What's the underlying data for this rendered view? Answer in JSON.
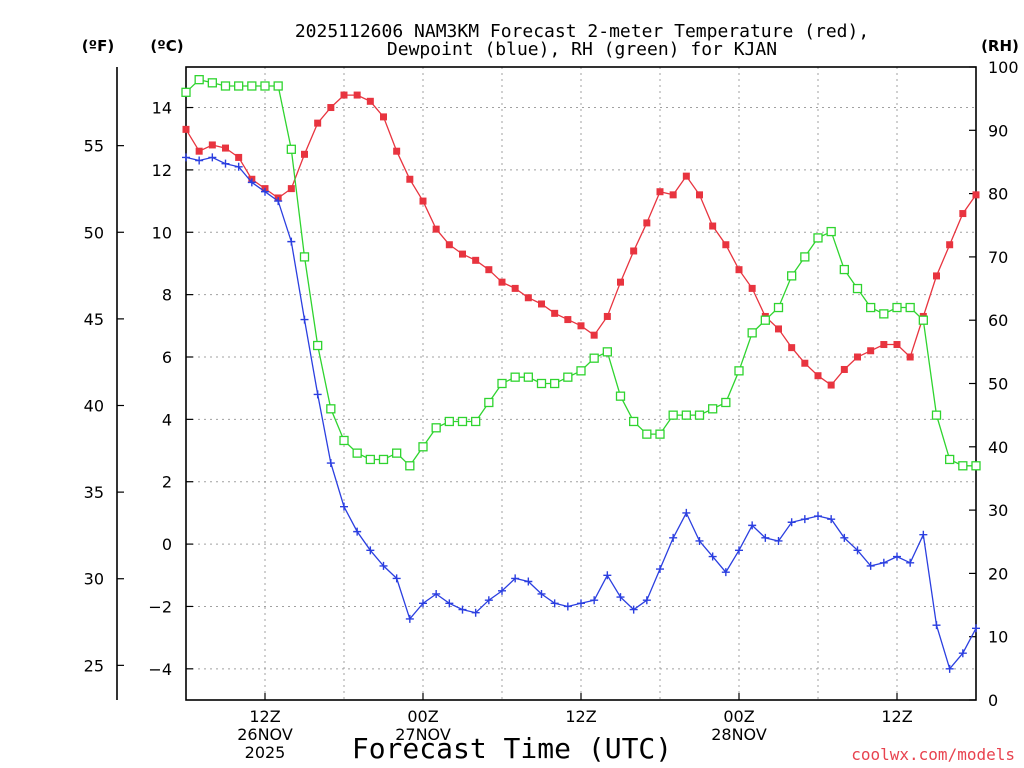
{
  "chart_data": {
    "type": "line",
    "title_line1": "2025112606 NAM3KM Forecast 2-meter Temperature (red),",
    "title_line2": "Dewpoint (blue), RH (green) for KJAN",
    "xlabel": "Forecast Time (UTC)",
    "credit": "coolwx.com/models",
    "unit_f": "(ºF)",
    "unit_c": "(ºC)",
    "unit_rh": "(RH)",
    "x_range_hours": [
      0,
      60
    ],
    "c_range": [
      -5,
      15.3
    ],
    "f_range": [
      23,
      59.54
    ],
    "rh_range": [
      0,
      100
    ],
    "c_ticks": [
      "−4",
      "−2",
      "0",
      "2",
      "4",
      "6",
      "8",
      "10",
      "12",
      "14"
    ],
    "c_tick_values": [
      -4,
      -2,
      0,
      2,
      4,
      6,
      8,
      10,
      12,
      14
    ],
    "f_ticks": [
      "25",
      "30",
      "35",
      "40",
      "45",
      "50",
      "55"
    ],
    "f_tick_values": [
      25,
      30,
      35,
      40,
      45,
      50,
      55
    ],
    "rh_ticks": [
      "0",
      "10",
      "20",
      "30",
      "40",
      "50",
      "60",
      "70",
      "80",
      "90",
      "100"
    ],
    "rh_tick_values": [
      0,
      10,
      20,
      30,
      40,
      50,
      60,
      70,
      80,
      90,
      100
    ],
    "x_ticks": [
      {
        "hour": 6,
        "lines": [
          "12Z",
          "26NOV",
          "2025"
        ]
      },
      {
        "hour": 18,
        "lines": [
          "00Z",
          "27NOV"
        ]
      },
      {
        "hour": 30,
        "lines": [
          "12Z"
        ]
      },
      {
        "hour": 42,
        "lines": [
          "00Z",
          "28NOV"
        ]
      },
      {
        "hour": 54,
        "lines": [
          "12Z"
        ]
      }
    ],
    "series": [
      {
        "name": "Temperature",
        "color": "#e8343f",
        "marker": "filled-square",
        "values": [
          13.3,
          12.6,
          12.8,
          12.7,
          12.4,
          11.7,
          11.4,
          11.1,
          11.4,
          12.5,
          13.5,
          14.0,
          14.4,
          14.4,
          14.2,
          13.7,
          12.6,
          11.7,
          11.0,
          10.1,
          9.6,
          9.3,
          9.1,
          8.8,
          8.4,
          8.2,
          7.9,
          7.7,
          7.4,
          7.2,
          7.0,
          6.7,
          7.3,
          8.4,
          9.4,
          10.3,
          11.3,
          11.2,
          11.8,
          11.2,
          10.2,
          9.6,
          8.8,
          8.2,
          7.3,
          6.9,
          6.3,
          5.8,
          5.4,
          5.1,
          5.6,
          6.0,
          6.2,
          6.4,
          6.4,
          6.0,
          7.3,
          8.6,
          9.6,
          10.6,
          11.2
        ]
      },
      {
        "name": "Dewpoint",
        "color": "#2b3fe0",
        "marker": "plus",
        "values": [
          12.4,
          12.3,
          12.4,
          12.2,
          12.1,
          11.6,
          11.3,
          11.0,
          9.7,
          7.2,
          4.8,
          2.6,
          1.2,
          0.4,
          -0.2,
          -0.7,
          -1.1,
          -2.4,
          -1.9,
          -1.6,
          -1.9,
          -2.1,
          -2.2,
          -1.8,
          -1.5,
          -1.1,
          -1.2,
          -1.6,
          -1.9,
          -2.0,
          -1.9,
          -1.8,
          -1.0,
          -1.7,
          -2.1,
          -1.8,
          -0.8,
          0.2,
          1.0,
          0.1,
          -0.4,
          -0.9,
          -0.2,
          0.6,
          0.2,
          0.1,
          0.7,
          0.8,
          0.9,
          0.8,
          0.2,
          -0.2,
          -0.7,
          -0.6,
          -0.4,
          -0.6,
          0.3,
          -2.6,
          -4.0,
          -3.5,
          -2.7
        ]
      },
      {
        "name": "RH",
        "color": "#2fd42f",
        "marker": "open-square",
        "values": [
          96,
          98,
          97.5,
          97,
          97,
          97,
          97,
          97,
          87,
          70,
          56,
          46,
          41,
          39,
          38,
          38,
          39,
          37,
          40,
          43,
          44,
          44,
          44,
          47,
          50,
          51,
          51,
          50,
          50,
          51,
          52,
          54,
          55,
          48,
          44,
          42,
          42,
          45,
          45,
          45,
          46,
          47,
          52,
          58,
          60,
          62,
          67,
          70,
          73,
          74,
          68,
          65,
          62,
          61,
          62,
          62,
          60,
          45,
          38,
          37,
          37
        ]
      }
    ]
  }
}
